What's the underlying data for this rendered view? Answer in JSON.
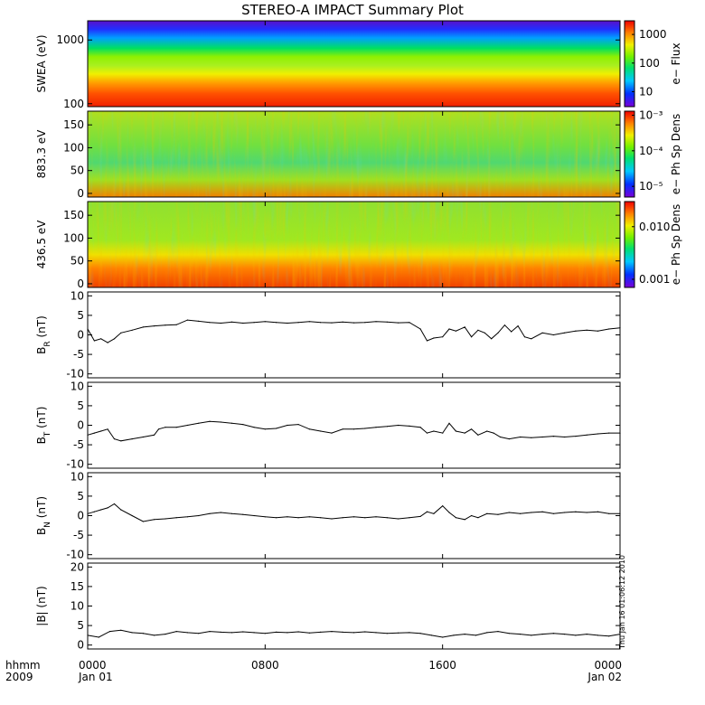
{
  "title": "STEREO-A IMPACT Summary Plot",
  "timestamp": "Thu Jan 16 01:06:12 2010",
  "x_axis": {
    "row1_label": "hhmm",
    "row2_label": "2009",
    "ticks": [
      {
        "t": 0,
        "top": "0000",
        "bottom": "Jan 01"
      },
      {
        "t": 8,
        "top": "0800",
        "bottom": ""
      },
      {
        "t": 16,
        "top": "1600",
        "bottom": ""
      },
      {
        "t": 24,
        "top": "0000",
        "bottom": "Jan 02"
      }
    ]
  },
  "chart_data": [
    {
      "type": "heatmap",
      "id": "swea",
      "ylabel": "SWEA (eV)",
      "yscale": "log",
      "ylim": [
        90,
        2000
      ],
      "yticks": [
        {
          "v": 100,
          "label": "100"
        },
        {
          "v": 1000,
          "label": "1000"
        }
      ],
      "colorbar": {
        "label": "e− Flux",
        "scale": "log",
        "range": [
          3,
          3000
        ],
        "ticks": [
          {
            "v": 10,
            "label": "10"
          },
          {
            "v": 100,
            "label": "100"
          },
          {
            "v": 1000,
            "label": "1000"
          }
        ]
      }
    },
    {
      "type": "heatmap",
      "id": "pad883",
      "ylabel": "883.3 eV",
      "ylim": [
        -8,
        180
      ],
      "yticks": [
        {
          "v": 0,
          "label": "0"
        },
        {
          "v": 50,
          "label": "50"
        },
        {
          "v": 100,
          "label": "100"
        },
        {
          "v": 150,
          "label": "150"
        }
      ],
      "colorbar": {
        "label": "e− Ph Sp Dens",
        "scale": "log",
        "range": [
          5e-06,
          0.0013
        ],
        "ticks": [
          {
            "v": 1e-05,
            "label": "10⁻⁵"
          },
          {
            "v": 0.0001,
            "label": "10⁻⁴"
          },
          {
            "v": 0.001,
            "label": "10⁻³"
          }
        ]
      }
    },
    {
      "type": "heatmap",
      "id": "pad436",
      "ylabel": "436.5 eV",
      "ylim": [
        -8,
        180
      ],
      "yticks": [
        {
          "v": 0,
          "label": "0"
        },
        {
          "v": 50,
          "label": "50"
        },
        {
          "v": 100,
          "label": "100"
        },
        {
          "v": 150,
          "label": "150"
        }
      ],
      "colorbar": {
        "label": "e− Ph Sp Dens",
        "scale": "log",
        "range": [
          0.0007,
          0.03
        ],
        "ticks": [
          {
            "v": 0.001,
            "label": "0.001"
          },
          {
            "v": 0.01,
            "label": "0.010"
          }
        ]
      }
    },
    {
      "type": "line",
      "id": "br",
      "ylabel_main": "B",
      "ylabel_sub": "R",
      "ylabel_unit": "(nT)",
      "ylim": [
        -11,
        11
      ],
      "yticks": [
        -10,
        -5,
        0,
        5,
        10
      ],
      "x": [
        0,
        0.3,
        0.6,
        0.9,
        1.2,
        1.5,
        2,
        2.5,
        3,
        3.5,
        4,
        4.5,
        5,
        5.5,
        6,
        6.5,
        7,
        7.5,
        8,
        8.5,
        9,
        9.5,
        10,
        10.5,
        11,
        11.5,
        12,
        12.5,
        13,
        13.5,
        14,
        14.5,
        15,
        15.3,
        15.6,
        16,
        16.3,
        16.6,
        17,
        17.3,
        17.6,
        17.9,
        18.2,
        18.5,
        18.8,
        19.1,
        19.4,
        19.7,
        20,
        20.5,
        21,
        21.5,
        22,
        22.5,
        23,
        23.5,
        24
      ],
      "y": [
        1.5,
        -1.5,
        -1.0,
        -2.0,
        -1.0,
        0.5,
        1.2,
        2.0,
        2.3,
        2.5,
        2.6,
        3.8,
        3.5,
        3.2,
        3.0,
        3.3,
        3.0,
        3.2,
        3.4,
        3.2,
        3.0,
        3.2,
        3.4,
        3.2,
        3.1,
        3.3,
        3.1,
        3.2,
        3.4,
        3.3,
        3.1,
        3.2,
        1.5,
        -1.5,
        -0.8,
        -0.5,
        1.5,
        1.0,
        2.0,
        -0.5,
        1.2,
        0.5,
        -1.0,
        0.5,
        2.5,
        0.8,
        2.3,
        -0.5,
        -1.0,
        0.5,
        0.0,
        0.5,
        1.0,
        1.2,
        1.0,
        1.5,
        1.8
      ]
    },
    {
      "type": "line",
      "id": "bt",
      "ylabel_main": "B",
      "ylabel_sub": "T",
      "ylabel_unit": "(nT)",
      "ylim": [
        -11,
        11
      ],
      "yticks": [
        -10,
        -5,
        0,
        5,
        10
      ],
      "x": [
        0,
        0.3,
        0.6,
        0.9,
        1.2,
        1.5,
        2,
        2.5,
        3,
        3.2,
        3.5,
        4,
        4.5,
        5,
        5.5,
        6,
        6.5,
        7,
        7.5,
        8,
        8.5,
        9,
        9.5,
        10,
        10.5,
        11,
        11.5,
        12,
        12.5,
        13,
        13.5,
        14,
        14.5,
        15,
        15.3,
        15.6,
        16,
        16.3,
        16.6,
        17,
        17.3,
        17.6,
        18,
        18.3,
        18.6,
        19,
        19.5,
        20,
        20.5,
        21,
        21.5,
        22,
        22.5,
        23,
        23.5,
        24
      ],
      "y": [
        -2.5,
        -2.0,
        -1.5,
        -1.0,
        -3.5,
        -4.0,
        -3.5,
        -3.0,
        -2.5,
        -1.0,
        -0.5,
        -0.5,
        0.0,
        0.5,
        1.0,
        0.8,
        0.5,
        0.2,
        -0.5,
        -1.0,
        -0.8,
        0.0,
        0.2,
        -1.0,
        -1.5,
        -2.0,
        -1.0,
        -1.0,
        -0.8,
        -0.5,
        -0.3,
        0.0,
        -0.2,
        -0.5,
        -2.0,
        -1.5,
        -2.0,
        0.5,
        -1.5,
        -2.0,
        -1.0,
        -2.5,
        -1.5,
        -2.0,
        -3.0,
        -3.5,
        -3.0,
        -3.2,
        -3.0,
        -2.8,
        -3.0,
        -2.8,
        -2.5,
        -2.2,
        -2.0,
        -2.0
      ]
    },
    {
      "type": "line",
      "id": "bn",
      "ylabel_main": "B",
      "ylabel_sub": "N",
      "ylabel_unit": "(nT)",
      "ylim": [
        -11,
        11
      ],
      "yticks": [
        -10,
        -5,
        0,
        5,
        10
      ],
      "x": [
        0,
        0.3,
        0.6,
        0.9,
        1.2,
        1.5,
        2,
        2.5,
        3,
        3.5,
        4,
        4.5,
        5,
        5.5,
        6,
        6.5,
        7,
        7.5,
        8,
        8.5,
        9,
        9.5,
        10,
        10.5,
        11,
        11.5,
        12,
        12.5,
        13,
        13.5,
        14,
        14.5,
        15,
        15.3,
        15.6,
        16,
        16.3,
        16.6,
        17,
        17.3,
        17.6,
        18,
        18.5,
        19,
        19.5,
        20,
        20.5,
        21,
        21.5,
        22,
        22.5,
        23,
        23.5,
        24
      ],
      "y": [
        0.5,
        1.0,
        1.5,
        2.0,
        3.0,
        1.5,
        0.0,
        -1.5,
        -1.0,
        -0.8,
        -0.5,
        -0.3,
        0.0,
        0.5,
        0.8,
        0.5,
        0.3,
        0.0,
        -0.3,
        -0.5,
        -0.3,
        -0.5,
        -0.3,
        -0.5,
        -0.8,
        -0.5,
        -0.3,
        -0.5,
        -0.3,
        -0.5,
        -0.8,
        -0.5,
        -0.2,
        1.0,
        0.5,
        2.5,
        0.8,
        -0.5,
        -1.0,
        0.0,
        -0.5,
        0.5,
        0.3,
        0.8,
        0.5,
        0.8,
        1.0,
        0.5,
        0.8,
        1.0,
        0.8,
        1.0,
        0.5,
        0.5
      ]
    },
    {
      "type": "line",
      "id": "bmag",
      "ylabel_main": "|B|",
      "ylabel_sub": "",
      "ylabel_unit": "(nT)",
      "ylim": [
        -1,
        21
      ],
      "yticks": [
        0,
        5,
        10,
        15,
        20
      ],
      "x": [
        0,
        0.5,
        1,
        1.5,
        2,
        2.5,
        3,
        3.5,
        4,
        4.5,
        5,
        5.5,
        6,
        6.5,
        7,
        7.5,
        8,
        8.5,
        9,
        9.5,
        10,
        10.5,
        11,
        11.5,
        12,
        12.5,
        13,
        13.5,
        14,
        14.5,
        15,
        15.5,
        16,
        16.5,
        17,
        17.5,
        18,
        18.5,
        19,
        19.5,
        20,
        20.5,
        21,
        21.5,
        22,
        22.5,
        23,
        23.5,
        24
      ],
      "y": [
        2.5,
        2.0,
        3.5,
        3.8,
        3.2,
        3.0,
        2.5,
        2.8,
        3.5,
        3.2,
        3.0,
        3.5,
        3.3,
        3.2,
        3.4,
        3.2,
        3.0,
        3.3,
        3.2,
        3.4,
        3.1,
        3.3,
        3.5,
        3.3,
        3.2,
        3.4,
        3.2,
        3.0,
        3.1,
        3.2,
        3.0,
        2.5,
        2.0,
        2.5,
        2.8,
        2.5,
        3.2,
        3.5,
        3.0,
        2.8,
        2.5,
        2.8,
        3.0,
        2.8,
        2.5,
        2.8,
        2.5,
        2.3,
        2.8
      ]
    }
  ]
}
